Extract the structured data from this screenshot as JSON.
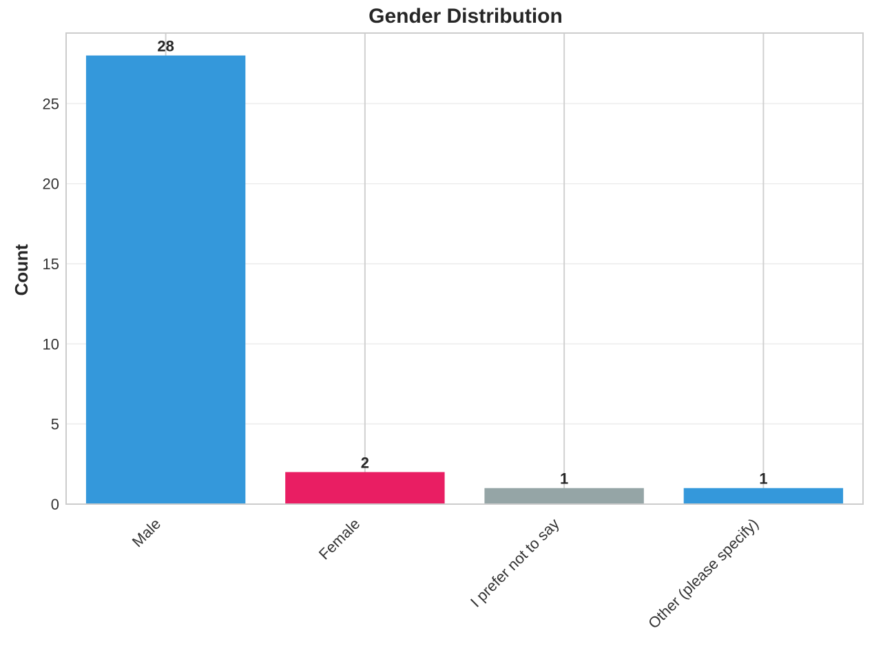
{
  "chart_data": {
    "type": "bar",
    "title": "Gender Distribution",
    "xlabel": "",
    "ylabel": "Count",
    "categories": [
      "Male",
      "Female",
      "I prefer not to say",
      "Other (please specify)"
    ],
    "values": [
      28,
      2,
      1,
      1
    ],
    "data_labels": [
      "28",
      "2",
      "1",
      "1"
    ],
    "colors": [
      "#3498db",
      "#e91e63",
      "#95a5a6",
      "#3498db"
    ],
    "ylim": [
      0,
      29.4
    ],
    "yticks": [
      0,
      5,
      10,
      15,
      20,
      25
    ],
    "grid": true,
    "legend": "none"
  }
}
